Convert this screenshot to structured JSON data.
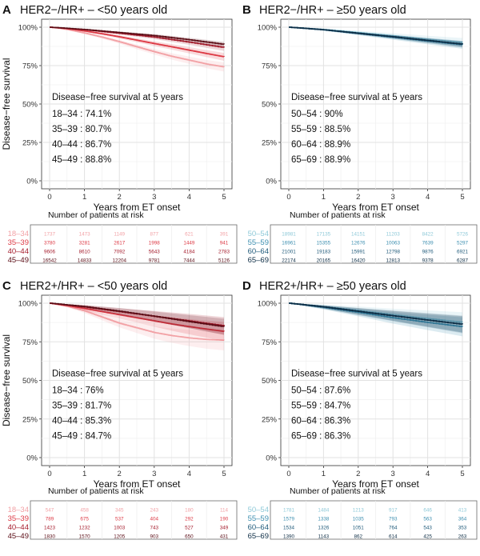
{
  "chart_data": [
    {
      "type": "line",
      "panel_letter": "A",
      "title": "HER2−/HR+ – <50 years old",
      "xlabel": "Years from ET onset",
      "ylabel": "Disease−free survival",
      "xlim": [
        0,
        5
      ],
      "ylim": [
        0,
        1
      ],
      "x_ticks": [
        "0",
        "1",
        "2",
        "3",
        "4",
        "5"
      ],
      "y_ticks": [
        "0%",
        "25%",
        "50%",
        "75%",
        "100%"
      ],
      "grid": true,
      "annotation": {
        "title": "Disease−free survival at 5 years",
        "lines": [
          "18–34 : 74.1%",
          "35–39 : 80.7%",
          "40–44 : 86.7%",
          "45–49 : 88.8%"
        ]
      },
      "series": [
        {
          "name": "18–34",
          "color": "#f2a1a5",
          "x": [
            0,
            0.25,
            0.5,
            1,
            1.5,
            2,
            2.5,
            3,
            3.5,
            4,
            4.5,
            5
          ],
          "y": [
            1.0,
            0.995,
            0.985,
            0.962,
            0.935,
            0.905,
            0.872,
            0.84,
            0.81,
            0.785,
            0.76,
            0.741
          ]
        },
        {
          "name": "35–39",
          "color": "#dd3a45",
          "x": [
            0,
            0.5,
            1,
            1.5,
            2,
            2.5,
            3,
            3.5,
            4,
            4.5,
            5
          ],
          "y": [
            1.0,
            0.99,
            0.975,
            0.957,
            0.937,
            0.915,
            0.893,
            0.872,
            0.85,
            0.828,
            0.807
          ]
        },
        {
          "name": "40–44",
          "color": "#a51c2c",
          "x": [
            0,
            1,
            2,
            3,
            4,
            5
          ],
          "y": [
            1.0,
            0.983,
            0.96,
            0.935,
            0.902,
            0.867
          ]
        },
        {
          "name": "45–49",
          "color": "#5a0c15",
          "x": [
            0,
            1,
            2,
            3,
            4,
            5
          ],
          "y": [
            1.0,
            0.985,
            0.965,
            0.945,
            0.918,
            0.888
          ]
        }
      ],
      "risk_table": {
        "title": "Number of patients at risk",
        "rows": [
          {
            "label": "18–34",
            "color": "#f2a1a5",
            "values": [
              "1737",
              "1473",
              "1149",
              "877",
              "621",
              "391"
            ]
          },
          {
            "label": "35–39",
            "color": "#dd3a45",
            "values": [
              "3780",
              "3281",
              "2617",
              "1998",
              "1449",
              "941"
            ]
          },
          {
            "label": "40–44",
            "color": "#a51c2c",
            "values": [
              "9606",
              "8610",
              "7092",
              "5643",
              "4184",
              "2783"
            ]
          },
          {
            "label": "45–49",
            "color": "#5a0c15",
            "values": [
              "16542",
              "14833",
              "12204",
              "9781",
              "7444",
              "5126"
            ]
          }
        ]
      }
    },
    {
      "type": "line",
      "panel_letter": "B",
      "title": "HER2−/HR+ – ≥50 years old",
      "xlabel": "Years from ET onset",
      "ylabel": "",
      "xlim": [
        0,
        5
      ],
      "ylim": [
        0,
        1
      ],
      "x_ticks": [
        "0",
        "1",
        "2",
        "3",
        "4",
        "5"
      ],
      "y_ticks": [
        "0%",
        "25%",
        "50%",
        "75%",
        "100%"
      ],
      "grid": true,
      "annotation": {
        "title": "Disease−free survival at 5 years",
        "lines": [
          "50–54 : 90%",
          "55–59 : 88.5%",
          "60–64 : 88.9%",
          "65–69 : 88.9%"
        ]
      },
      "series": [
        {
          "name": "50–54",
          "color": "#8ec9d8",
          "x": [
            0,
            1,
            2,
            3,
            4,
            5
          ],
          "y": [
            1.0,
            0.985,
            0.965,
            0.943,
            0.92,
            0.9
          ]
        },
        {
          "name": "55–59",
          "color": "#3d8fb0",
          "x": [
            0,
            1,
            2,
            3,
            4,
            5
          ],
          "y": [
            1.0,
            0.982,
            0.958,
            0.934,
            0.909,
            0.885
          ]
        },
        {
          "name": "60–64",
          "color": "#1f5a7a",
          "x": [
            0,
            1,
            2,
            3,
            4,
            5
          ],
          "y": [
            1.0,
            0.983,
            0.96,
            0.937,
            0.913,
            0.889
          ]
        },
        {
          "name": "65–69",
          "color": "#0d2d45",
          "x": [
            0,
            1,
            2,
            3,
            4,
            5
          ],
          "y": [
            1.0,
            0.983,
            0.96,
            0.937,
            0.913,
            0.889
          ]
        }
      ],
      "risk_table": {
        "title": "Number of patients at risk",
        "rows": [
          {
            "label": "50–54",
            "color": "#8ec9d8",
            "values": [
              "18981",
              "17135",
              "14151",
              "11203",
              "8422",
              "5726"
            ]
          },
          {
            "label": "55–59",
            "color": "#3d8fb0",
            "values": [
              "16961",
              "15355",
              "12676",
              "10063",
              "7639",
              "5297"
            ]
          },
          {
            "label": "60–64",
            "color": "#1f5a7a",
            "values": [
              "21001",
              "19183",
              "15991",
              "12798",
              "9876",
              "6921"
            ]
          },
          {
            "label": "65–69",
            "color": "#0d2d45",
            "values": [
              "22174",
              "20165",
              "16420",
              "12813",
              "9378",
              "6287"
            ]
          }
        ]
      }
    },
    {
      "type": "line",
      "panel_letter": "C",
      "title": "HER2+/HR+ – <50 years old",
      "xlabel": "Years from ET onset",
      "ylabel": "Disease−free survival",
      "xlim": [
        0,
        5
      ],
      "ylim": [
        0,
        1
      ],
      "x_ticks": [
        "0",
        "1",
        "2",
        "3",
        "4",
        "5"
      ],
      "y_ticks": [
        "0%",
        "25%",
        "50%",
        "75%",
        "100%"
      ],
      "grid": true,
      "annotation": {
        "title": "Disease−free survival at 5 years",
        "lines": [
          "18–34 : 76%",
          "35–39 : 81.7%",
          "40–44 : 85.3%",
          "45–49 : 84.7%"
        ]
      },
      "series": [
        {
          "name": "18–34",
          "color": "#f2a1a5",
          "x": [
            0,
            0.5,
            1,
            1.5,
            2,
            2.5,
            3,
            3.5,
            4,
            4.5,
            5
          ],
          "y": [
            1.0,
            0.98,
            0.95,
            0.91,
            0.87,
            0.84,
            0.81,
            0.79,
            0.775,
            0.765,
            0.76
          ]
        },
        {
          "name": "35–39",
          "color": "#dd3a45",
          "x": [
            0,
            0.5,
            1,
            1.5,
            2,
            2.5,
            3,
            3.5,
            4,
            4.5,
            5
          ],
          "y": [
            1.0,
            0.985,
            0.965,
            0.945,
            0.925,
            0.905,
            0.885,
            0.865,
            0.848,
            0.832,
            0.817
          ]
        },
        {
          "name": "40–44",
          "color": "#a51c2c",
          "x": [
            0,
            1,
            2,
            3,
            4,
            5
          ],
          "y": [
            1.0,
            0.975,
            0.945,
            0.915,
            0.885,
            0.853
          ]
        },
        {
          "name": "45–49",
          "color": "#5a0c15",
          "x": [
            0,
            1,
            2,
            3,
            4,
            5
          ],
          "y": [
            1.0,
            0.978,
            0.948,
            0.915,
            0.88,
            0.847
          ]
        }
      ],
      "risk_table": {
        "title": "Number of patients at risk",
        "rows": [
          {
            "label": "18–34",
            "color": "#f2a1a5",
            "values": [
              "547",
              "458",
              "345",
              "243",
              "180",
              "114"
            ]
          },
          {
            "label": "35–39",
            "color": "#dd3a45",
            "values": [
              "789",
              "675",
              "537",
              "404",
              "292",
              "190"
            ]
          },
          {
            "label": "40–44",
            "color": "#a51c2c",
            "values": [
              "1423",
              "1232",
              "1003",
              "743",
              "527",
              "349"
            ]
          },
          {
            "label": "45–49",
            "color": "#5a0c15",
            "values": [
              "1830",
              "1570",
              "1205",
              "903",
              "650",
              "431"
            ]
          }
        ]
      }
    },
    {
      "type": "line",
      "panel_letter": "D",
      "title": "HER2+/HR+ – ≥50 years old",
      "xlabel": "Years from ET onset",
      "ylabel": "",
      "xlim": [
        0,
        5
      ],
      "ylim": [
        0,
        1
      ],
      "x_ticks": [
        "0",
        "1",
        "2",
        "3",
        "4",
        "5"
      ],
      "y_ticks": [
        "0%",
        "25%",
        "50%",
        "75%",
        "100%"
      ],
      "grid": true,
      "annotation": {
        "title": "Disease−free survival at 5 years",
        "lines": [
          "50–54 : 87.6%",
          "55–59 : 84.7%",
          "60–64 : 86.3%",
          "65–69 : 86.3%"
        ]
      },
      "series": [
        {
          "name": "50–54",
          "color": "#8ec9d8",
          "x": [
            0,
            1,
            2,
            3,
            4,
            5
          ],
          "y": [
            1.0,
            0.978,
            0.952,
            0.925,
            0.9,
            0.876
          ]
        },
        {
          "name": "55–59",
          "color": "#3d8fb0",
          "x": [
            0,
            1,
            2,
            3,
            4,
            5
          ],
          "y": [
            1.0,
            0.972,
            0.94,
            0.905,
            0.875,
            0.847
          ]
        },
        {
          "name": "60–64",
          "color": "#1f5a7a",
          "x": [
            0,
            1,
            2,
            3,
            4,
            5
          ],
          "y": [
            1.0,
            0.975,
            0.946,
            0.918,
            0.89,
            0.863
          ]
        },
        {
          "name": "65–69",
          "color": "#0d2d45",
          "x": [
            0,
            1,
            2,
            3,
            4,
            5
          ],
          "y": [
            1.0,
            0.976,
            0.947,
            0.918,
            0.89,
            0.863
          ]
        }
      ],
      "risk_table": {
        "title": "Number of patients at risk",
        "rows": [
          {
            "label": "50–54",
            "color": "#8ec9d8",
            "values": [
              "1781",
              "1484",
              "1213",
              "917",
              "646",
              "413"
            ]
          },
          {
            "label": "55–59",
            "color": "#3d8fb0",
            "values": [
              "1579",
              "1338",
              "1035",
              "793",
              "563",
              "364"
            ]
          },
          {
            "label": "60–64",
            "color": "#1f5a7a",
            "values": [
              "1534",
              "1326",
              "1051",
              "764",
              "543",
              "353"
            ]
          },
          {
            "label": "65–69",
            "color": "#0d2d45",
            "values": [
              "1390",
              "1143",
              "862",
              "614",
              "425",
              "263"
            ]
          }
        ]
      }
    }
  ]
}
